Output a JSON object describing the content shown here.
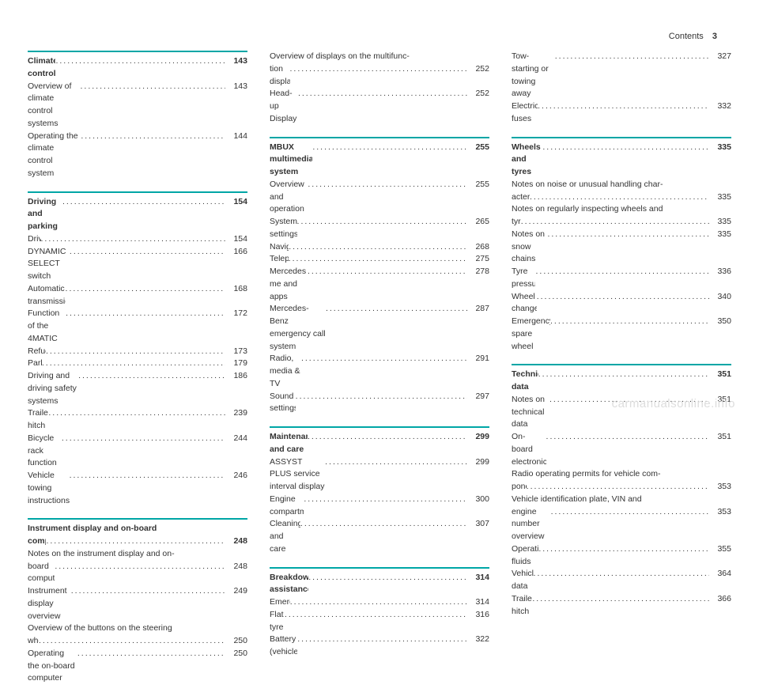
{
  "header": {
    "title": "Contents",
    "page": "3"
  },
  "watermark": "carmanualsonline.info",
  "accent_color": "#00a6a6",
  "columns": [
    {
      "sections": [
        {
          "entries": [
            {
              "label": "Climate control",
              "page": "143",
              "bold": true
            },
            {
              "label": "Overview of climate control systems",
              "page": "143"
            },
            {
              "label": "Operating the climate control system",
              "page": "144"
            }
          ]
        },
        {
          "entries": [
            {
              "label": "Driving and parking",
              "page": "154",
              "bold": true
            },
            {
              "label": "Driving",
              "page": "154"
            },
            {
              "label": "DYNAMIC SELECT switch",
              "page": "166"
            },
            {
              "label": "Automatic transmission",
              "page": "168"
            },
            {
              "label": "Function of the 4MATIC",
              "page": "172"
            },
            {
              "label": "Refuelling",
              "page": "173"
            },
            {
              "label": "Parking",
              "page": "179"
            },
            {
              "label": "Driving and driving safety systems",
              "page": "186"
            },
            {
              "label": "Trailer hitch",
              "page": "239"
            },
            {
              "label": "Bicycle rack function",
              "page": "244"
            },
            {
              "label": "Vehicle towing instructions",
              "page": "246"
            }
          ]
        },
        {
          "entries": [
            {
              "label": "Instrument display and on-board computer",
              "page": "248",
              "bold": true,
              "multiline": true,
              "line1": "Instrument display and on-board",
              "line2": "computer"
            },
            {
              "label": "Notes on the instrument display and on-board computer",
              "page": "248",
              "multiline": true,
              "line1": "Notes on the instrument display and on-",
              "line2": "board computer"
            },
            {
              "label": "Instrument display overview",
              "page": "249"
            },
            {
              "label": "Overview of the buttons on the steering wheel",
              "page": "250",
              "multiline": true,
              "line1": "Overview of the buttons on the steering",
              "line2": "wheel"
            },
            {
              "label": "Operating the on-board computer",
              "page": "250"
            }
          ]
        }
      ]
    },
    {
      "sections": [
        {
          "no_divider": true,
          "entries": [
            {
              "label": "Overview of displays on the multifunction display",
              "page": "252",
              "multiline": true,
              "line1": "Overview of displays on the multifunc-",
              "line2": "tion display"
            },
            {
              "label": "Head-up Display",
              "page": "252"
            }
          ]
        },
        {
          "entries": [
            {
              "label": "MBUX multimedia system",
              "page": "255",
              "bold": true
            },
            {
              "label": "Overview and operation",
              "page": "255"
            },
            {
              "label": "System settings",
              "page": "265"
            },
            {
              "label": "Navigation",
              "page": "268"
            },
            {
              "label": "Telephone",
              "page": "275"
            },
            {
              "label": "Mercedes me and apps",
              "page": "278"
            },
            {
              "label": "Mercedes-Benz emergency call system",
              "page": "287"
            },
            {
              "label": "Radio, media & TV",
              "page": "291"
            },
            {
              "label": "Sound settings",
              "page": "297"
            }
          ]
        },
        {
          "entries": [
            {
              "label": "Maintenance and care",
              "page": "299",
              "bold": true
            },
            {
              "label": "ASSYST PLUS service interval display",
              "page": "299"
            },
            {
              "label": "Engine compartment",
              "page": "300"
            },
            {
              "label": "Cleaning and care",
              "page": "307"
            }
          ]
        },
        {
          "entries": [
            {
              "label": "Breakdown assistance",
              "page": "314",
              "bold": true
            },
            {
              "label": "Emergency",
              "page": "314"
            },
            {
              "label": "Flat tyre",
              "page": "316"
            },
            {
              "label": "Battery (vehicle)",
              "page": "322"
            }
          ]
        }
      ]
    },
    {
      "sections": [
        {
          "no_divider": true,
          "entries": [
            {
              "label": "Tow-starting or towing away",
              "page": "327"
            },
            {
              "label": "Electrical fuses",
              "page": "332"
            }
          ]
        },
        {
          "entries": [
            {
              "label": "Wheels and tyres",
              "page": "335",
              "bold": true
            },
            {
              "label": "Notes on noise or unusual handling characteristics",
              "page": "335",
              "multiline": true,
              "line1": "Notes on noise or unusual handling char-",
              "line2": "acteristics"
            },
            {
              "label": "Notes on regularly inspecting wheels and tyres",
              "page": "335",
              "multiline": true,
              "line1": "Notes on regularly inspecting wheels and",
              "line2": "tyres"
            },
            {
              "label": "Notes on snow chains",
              "page": "335"
            },
            {
              "label": "Tyre pressure",
              "page": "336"
            },
            {
              "label": "Wheel change",
              "page": "340"
            },
            {
              "label": "Emergency spare wheel",
              "page": "350"
            }
          ]
        },
        {
          "entries": [
            {
              "label": "Technical data",
              "page": "351",
              "bold": true
            },
            {
              "label": "Notes on technical data",
              "page": "351"
            },
            {
              "label": "On-board electronics",
              "page": "351"
            },
            {
              "label": "Radio operating permits for vehicle components",
              "page": "353",
              "multiline": true,
              "line1": "Radio operating permits for vehicle com-",
              "line2": "ponents"
            },
            {
              "label": "Vehicle identification plate, VIN and engine number overview",
              "page": "353",
              "multiline": true,
              "line1": "Vehicle identification plate, VIN and",
              "line2": "engine number overview"
            },
            {
              "label": "Operating fluids",
              "page": "355"
            },
            {
              "label": "Vehicle data",
              "page": "364"
            },
            {
              "label": "Trailer hitch",
              "page": "366"
            }
          ]
        }
      ]
    }
  ]
}
